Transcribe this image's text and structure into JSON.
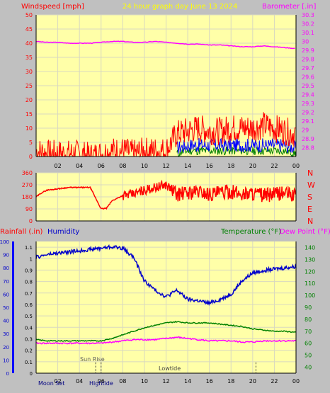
{
  "header": {
    "left_label": "Windspeed [mph]",
    "center_label": "24 hour graph day   June 13 2024",
    "right_label": "Barometer [.in]"
  },
  "colors": {
    "plot_bg": "#ffffa8",
    "grid": "#d8d8c0",
    "wind": "#ff0000",
    "gust_blue": "#0000ff",
    "gust_green": "#008000",
    "barometer": "#ff00ff",
    "direction": "#ff0000",
    "humidity": "#0000cc",
    "temperature": "#008000",
    "dew_point": "#ff00ff",
    "rain_axis": "#ff0000",
    "header_yellow": "#ffff00"
  },
  "panel3": {
    "rain_label": "Rainfall (.in)",
    "humidity_label": "Humidity",
    "temperature_label": "Temperature (°F)",
    "dew_label": "Dew Point (°F)"
  },
  "annotations": {
    "sunrise": "Sun Rise",
    "lowtide": "Lowtide",
    "moonset": "Moon Set",
    "hightide": "Hightide"
  },
  "chart_data": [
    {
      "type": "line",
      "x_label_ticks": [
        "02",
        "04",
        "06",
        "08",
        "10",
        "12",
        "14",
        "16",
        "18",
        "20",
        "22",
        "00"
      ],
      "left_axis": {
        "ticks": [
          "0",
          "5",
          "10",
          "15",
          "20",
          "25",
          "30",
          "35",
          "40",
          "45",
          "50"
        ],
        "ylim": [
          0,
          50
        ]
      },
      "right_axis": {
        "ticks": [
          "28.8",
          "28.9",
          "29",
          "29.1",
          "29.2",
          "29.3",
          "29.4",
          "29.5",
          "29.6",
          "29.7",
          "29.8",
          "29.9",
          "30",
          "30.1",
          "30.2",
          "30.3"
        ],
        "ylim": [
          28.7,
          30.3
        ]
      },
      "grid": true,
      "series": [
        {
          "hours": [
            0,
            1,
            2,
            3,
            4,
            5,
            6,
            7,
            8,
            9,
            10,
            11,
            12,
            13,
            14,
            15,
            16,
            17,
            18,
            19,
            20,
            21,
            22,
            23,
            24
          ],
          "values": [
            30.0,
            29.99,
            29.99,
            29.98,
            29.98,
            29.98,
            29.99,
            30.0,
            30.0,
            29.99,
            29.99,
            30.0,
            29.99,
            29.98,
            29.97,
            29.97,
            29.96,
            29.96,
            29.95,
            29.94,
            29.94,
            29.95,
            29.94,
            29.93,
            29.92
          ]
        },
        {
          "hours": [
            0,
            1,
            2,
            3,
            4,
            5,
            6,
            7,
            8,
            9,
            10,
            11,
            12,
            13,
            14,
            15,
            16,
            17,
            18,
            19,
            20,
            21,
            22,
            23,
            24
          ],
          "values": [
            2,
            1,
            1,
            1,
            1,
            0,
            1,
            2,
            2,
            1,
            2,
            2,
            2,
            8,
            9,
            10,
            9,
            9,
            10,
            10,
            10,
            11,
            10,
            9,
            8
          ]
        },
        {
          "hours": [
            13,
            14,
            15,
            16,
            17,
            18,
            19,
            20,
            21,
            22,
            23,
            24
          ],
          "values": [
            3,
            4,
            4,
            4,
            4,
            4,
            4,
            4,
            4,
            4,
            4,
            3
          ]
        },
        {
          "hours": [
            13,
            14,
            15,
            16,
            17,
            18,
            19,
            20,
            21,
            22,
            23,
            24
          ],
          "values": [
            1,
            2,
            2,
            2,
            2,
            2,
            2,
            2,
            2,
            2,
            2,
            1
          ]
        }
      ]
    },
    {
      "type": "line",
      "x_label_ticks": [],
      "left_axis": {
        "ticks": [
          "0",
          "90",
          "180",
          "270",
          "360"
        ],
        "ylim": [
          0,
          360
        ]
      },
      "right_axis": {
        "ticks": [
          "N",
          "W",
          "S",
          "E",
          "N"
        ]
      },
      "grid": true,
      "series": [
        {
          "hours": [
            0,
            0.5,
            1,
            2,
            3,
            4,
            5,
            6,
            6.5,
            7,
            8,
            9,
            10,
            11,
            12,
            13,
            14,
            15,
            16,
            17,
            18,
            19,
            20,
            21,
            22,
            23,
            24
          ],
          "values": [
            180,
            210,
            230,
            240,
            250,
            250,
            250,
            90,
            95,
            150,
            190,
            200,
            230,
            250,
            270,
            200,
            210,
            220,
            200,
            210,
            220,
            200,
            210,
            190,
            200,
            210,
            185
          ]
        }
      ]
    },
    {
      "type": "line",
      "x_label_ticks": [
        "02",
        "04",
        "06",
        "08",
        "10",
        "12",
        "14",
        "16",
        "18",
        "20",
        "22",
        "00"
      ],
      "left_axis": {
        "ticks": [
          "0",
          "0.1",
          "0.2",
          "0.3",
          "0.4",
          "0.5",
          "0.6",
          "0.7",
          "0.8",
          "0.9",
          "1",
          "1.1"
        ],
        "ylim": [
          0,
          1.15
        ]
      },
      "humidity_axis": {
        "ticks": [
          "0",
          "10",
          "20",
          "30",
          "40",
          "50",
          "60",
          "70",
          "80",
          "90",
          "100"
        ],
        "ylim": [
          0,
          100
        ]
      },
      "right_axis": {
        "ticks": [
          "40",
          "50",
          "60",
          "70",
          "80",
          "90",
          "100",
          "110",
          "120",
          "130",
          "140"
        ],
        "ylim": [
          35,
          145
        ]
      },
      "grid": true,
      "series": [
        {
          "hours": [
            0,
            1,
            2,
            3,
            4,
            5,
            6,
            7,
            8,
            9,
            10,
            11,
            12,
            13,
            14,
            15,
            16,
            17,
            18,
            19,
            20,
            21,
            22,
            23,
            24
          ],
          "values": [
            88,
            90,
            91,
            92,
            93,
            94,
            95,
            96,
            95,
            88,
            70,
            63,
            58,
            63,
            56,
            55,
            53,
            56,
            60,
            70,
            76,
            78,
            79,
            80,
            81
          ]
        },
        {
          "hours": [
            0,
            1,
            2,
            3,
            4,
            5,
            6,
            7,
            8,
            9,
            10,
            11,
            12,
            13,
            14,
            15,
            16,
            17,
            18,
            19,
            20,
            21,
            22,
            23,
            24
          ],
          "values": [
            63,
            62,
            62,
            62,
            62,
            62,
            62,
            64,
            67,
            70,
            73,
            75,
            77,
            78,
            77,
            77,
            77,
            76,
            75,
            74,
            72,
            71,
            70,
            70,
            69
          ]
        },
        {
          "hours": [
            0,
            1,
            2,
            3,
            4,
            5,
            6,
            7,
            8,
            9,
            10,
            11,
            12,
            13,
            14,
            15,
            16,
            17,
            18,
            19,
            20,
            21,
            22,
            23,
            24
          ],
          "values": [
            60,
            60,
            60,
            60,
            60,
            60,
            60,
            61,
            62,
            63,
            63,
            63,
            64,
            65,
            64,
            63,
            62,
            62,
            62,
            61,
            61,
            62,
            62,
            62,
            62
          ]
        }
      ]
    }
  ]
}
